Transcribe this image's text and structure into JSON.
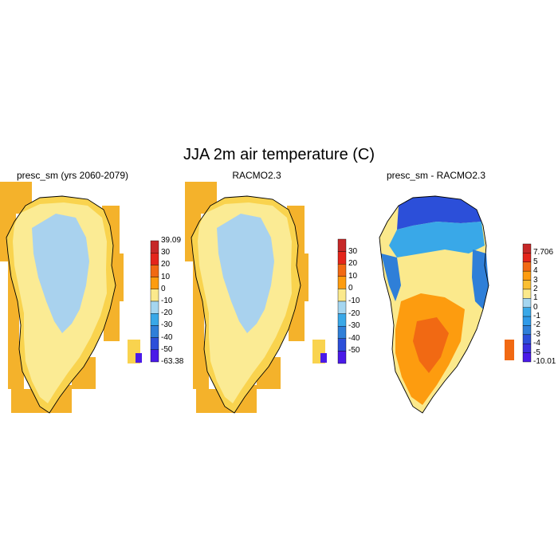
{
  "figure": {
    "title": "JJA 2m air temperature (C)"
  },
  "panels": [
    {
      "title": "presc_sm (yrs 2060-2079)",
      "colorbar": {
        "labels": [
          "39.09",
          "30",
          "20",
          "10",
          "0",
          "-10",
          "-20",
          "-30",
          "-40",
          "-50",
          "-63.38"
        ],
        "colors": [
          "#c62828",
          "#e4251b",
          "#f16913",
          "#fd9c0f",
          "#fbe98c",
          "#a5d6f0",
          "#39a8e8",
          "#2f7fd8",
          "#2c4fd9",
          "#4a1ae8"
        ]
      },
      "field_colors": {
        "outside": "#f4b22b",
        "coast": "#f9d34e",
        "margin": "#fbeb94",
        "interior": "#a9d2ee"
      }
    },
    {
      "title": "RACMO2.3",
      "colorbar": {
        "labels": [
          "30",
          "20",
          "10",
          "0",
          "-10",
          "-20",
          "-30",
          "-40",
          "-50"
        ],
        "colors": [
          "#c62828",
          "#e4251b",
          "#f16913",
          "#fd9c0f",
          "#fbe98c",
          "#a5d6f0",
          "#39a8e8",
          "#2f7fd8",
          "#2c4fd9",
          "#4a1ae8"
        ]
      },
      "field_colors": {
        "outside": "#f4b22b",
        "coast": "#f9d34e",
        "margin": "#fbeb94",
        "interior": "#a9d2ee"
      }
    },
    {
      "title": "presc_sm - RACMO2.3",
      "colorbar": {
        "labels": [
          "7.706",
          "5",
          "4",
          "3",
          "2",
          "1",
          "0",
          "-1",
          "-2",
          "-3",
          "-4",
          "-5",
          "-10.01"
        ],
        "colors": [
          "#c62828",
          "#e4251b",
          "#f16913",
          "#fd9c0f",
          "#fbbf32",
          "#fbe98c",
          "#a5d6f0",
          "#39a8e8",
          "#2f9ae8",
          "#2f7fd8",
          "#2c4fd9",
          "#3a2fe0",
          "#4a1ae8"
        ]
      },
      "field_colors": {
        "outside": "#ffffff",
        "north": "#2c4fd9",
        "north_edge": "#39a8e8",
        "center": "#fbe98c",
        "south": "#fd9c0f",
        "south_core": "#f16913",
        "east_coast": "#2f7fd8"
      }
    }
  ]
}
